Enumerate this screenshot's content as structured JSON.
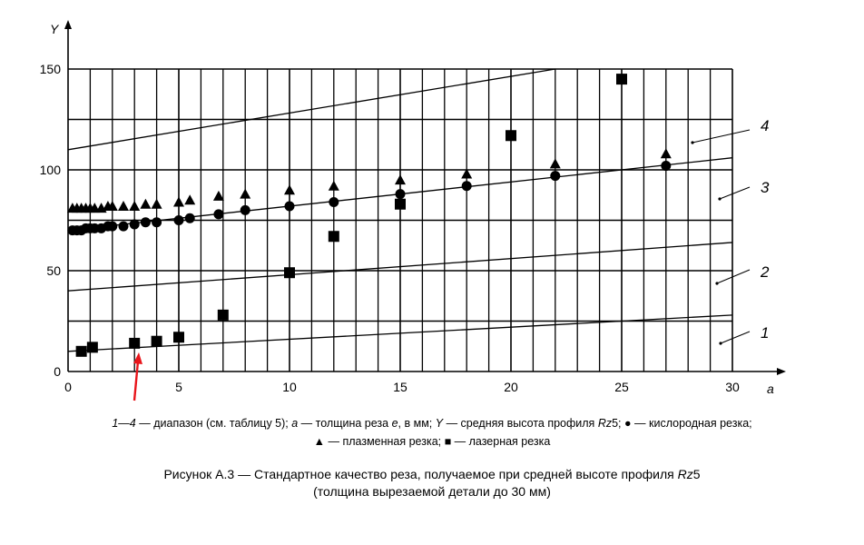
{
  "chart_data": {
    "type": "scatter",
    "xlabel": "a",
    "ylabel": "Y",
    "xlim": [
      0,
      30
    ],
    "ylim": [
      0,
      150
    ],
    "x_ticks": [
      0,
      5,
      10,
      15,
      20,
      25,
      30
    ],
    "y_ticks": [
      0,
      50,
      100,
      150
    ],
    "grid": true,
    "grid_x_step": 1,
    "grid_y_step": 25,
    "series": [
      {
        "marker": "triangle",
        "points": [
          [
            0.2,
            81
          ],
          [
            0.4,
            81
          ],
          [
            0.6,
            81
          ],
          [
            0.8,
            81
          ],
          [
            1,
            81
          ],
          [
            1.2,
            81
          ],
          [
            1.5,
            81
          ],
          [
            1.8,
            82
          ],
          [
            2,
            82
          ],
          [
            2.5,
            82
          ],
          [
            3,
            82
          ],
          [
            3.5,
            83
          ],
          [
            4,
            83
          ],
          [
            5,
            84
          ],
          [
            5.5,
            85
          ],
          [
            6.8,
            87
          ],
          [
            8,
            88
          ],
          [
            10,
            90
          ],
          [
            12,
            92
          ],
          [
            15,
            95
          ],
          [
            18,
            98
          ],
          [
            22,
            103
          ],
          [
            27,
            108
          ]
        ]
      },
      {
        "marker": "circle",
        "points": [
          [
            0.2,
            70
          ],
          [
            0.4,
            70
          ],
          [
            0.6,
            70
          ],
          [
            0.8,
            71
          ],
          [
            1,
            71
          ],
          [
            1.2,
            71
          ],
          [
            1.5,
            71
          ],
          [
            1.8,
            72
          ],
          [
            2,
            72
          ],
          [
            2.5,
            72
          ],
          [
            3,
            73
          ],
          [
            3.5,
            74
          ],
          [
            4,
            74
          ],
          [
            5,
            75
          ],
          [
            5.5,
            76
          ],
          [
            6.8,
            78
          ],
          [
            8,
            80
          ],
          [
            10,
            82
          ],
          [
            12,
            84
          ],
          [
            15,
            88
          ],
          [
            18,
            92
          ],
          [
            22,
            97
          ],
          [
            27,
            102
          ]
        ]
      },
      {
        "marker": "square",
        "points": [
          [
            0.6,
            10
          ],
          [
            1.1,
            12
          ],
          [
            3,
            14
          ],
          [
            4,
            15
          ],
          [
            5,
            17
          ],
          [
            7,
            28
          ],
          [
            10,
            49
          ],
          [
            12,
            67
          ],
          [
            15,
            83
          ],
          [
            20,
            117
          ],
          [
            25,
            145
          ]
        ]
      }
    ],
    "range_lines": [
      {
        "label": "1",
        "from": [
          0,
          10
        ],
        "to": [
          30,
          28
        ]
      },
      {
        "label": "2",
        "from": [
          0,
          40
        ],
        "to": [
          30,
          64
        ]
      },
      {
        "label": "3",
        "from": [
          0,
          70
        ],
        "to": [
          30,
          106
        ]
      },
      {
        "label": "4",
        "from": [
          0,
          110
        ],
        "to": [
          22,
          150
        ]
      }
    ]
  },
  "legend": {
    "line1_range": "1—4",
    "line1_text1": " — диапазон (см. таблицу 5); ",
    "line1_a": "a",
    "line1_text2": " — толщина реза ",
    "line1_e": "e",
    "line1_text3": ", в мм; ",
    "line1_Y": "Y",
    "line1_text4": " — средняя высота профиля ",
    "line1_rz": "Rz",
    "line1_text5": "5; ● — кислородная резка;",
    "line2": "▲ — плазменная резка; ■ — лазерная резка"
  },
  "caption": {
    "line1_text": "Рисунок А.3 — Стандартное качество реза, получаемое при средней высоте профиля ",
    "line1_rz": "Rz",
    "line1_tail": "5",
    "line2": "(толщина вырезаемой детали до 30 мм)"
  }
}
